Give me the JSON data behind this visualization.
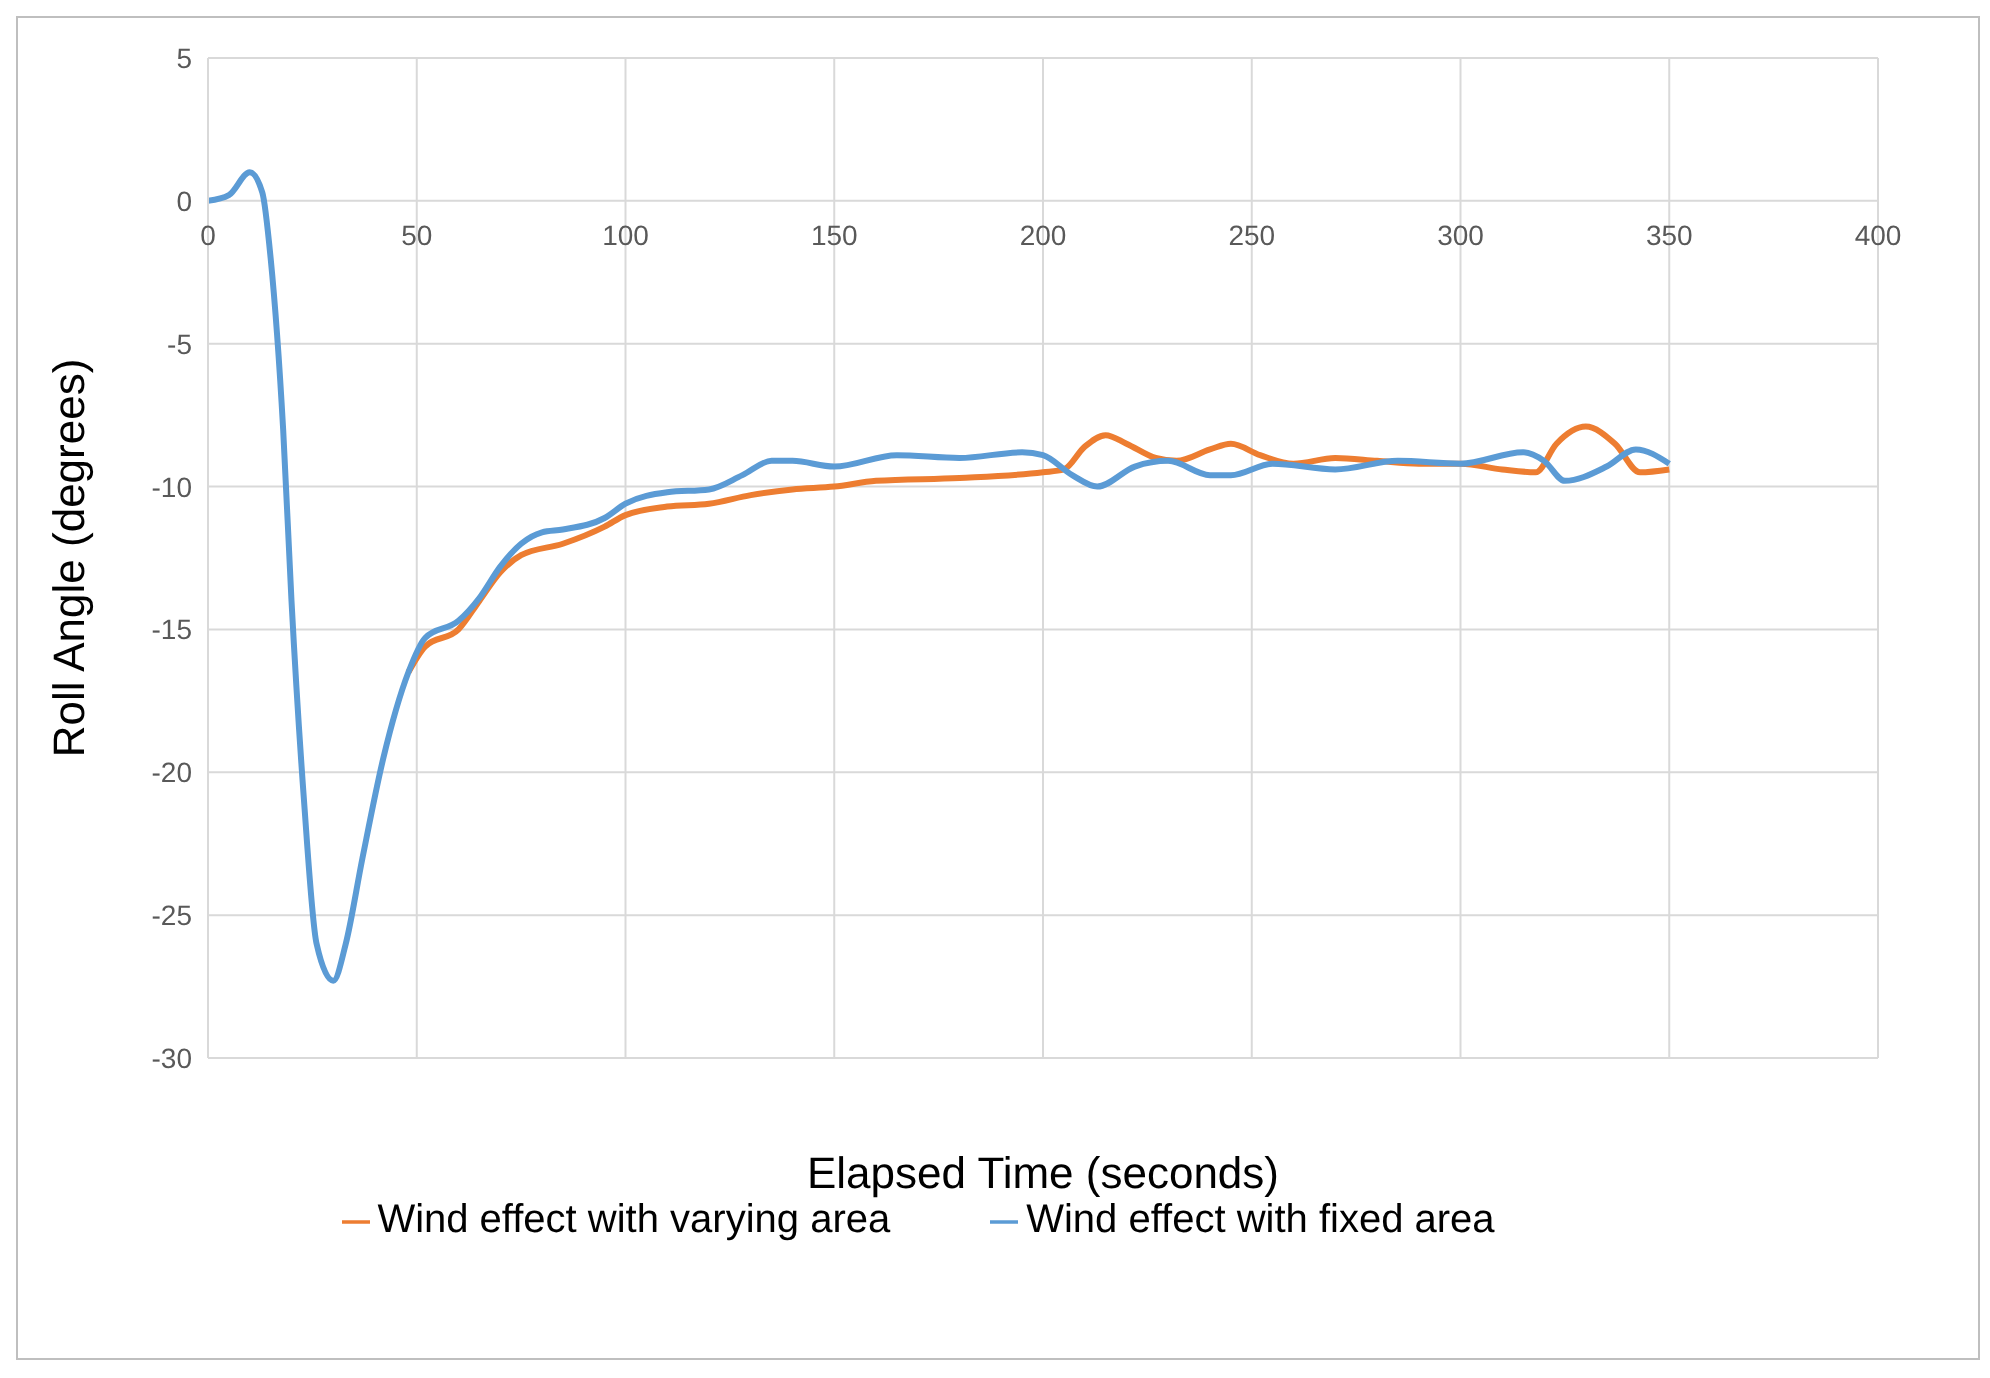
{
  "chart_data": {
    "type": "line",
    "xlabel": "Elapsed Time (seconds)",
    "ylabel": "Roll Angle (degrees)",
    "xlim": [
      0,
      400
    ],
    "xticks": [
      0,
      50,
      100,
      150,
      200,
      250,
      300,
      350,
      400
    ],
    "ylim": [
      -30,
      5
    ],
    "yticks": [
      -30,
      -25,
      -20,
      -15,
      -10,
      -5,
      0,
      5
    ],
    "grid": true,
    "legend": "bottom",
    "marker": "none",
    "line_style": "solid",
    "series": [
      {
        "name": "Wind effect with varying area",
        "color": "#ed7d31",
        "x": [
          48,
          52,
          60,
          65,
          70,
          75,
          85,
          95,
          100,
          110,
          120,
          130,
          140,
          150,
          160,
          180,
          200,
          205,
          210,
          215,
          220,
          227,
          232,
          240,
          245,
          252,
          260,
          270,
          280,
          290,
          300,
          310,
          318,
          323,
          330,
          337,
          343,
          350
        ],
        "values": [
          -16.5,
          -15.6,
          -15.0,
          -14,
          -13,
          -12.4,
          -12.0,
          -11.4,
          -11.0,
          -10.7,
          -10.6,
          -10.3,
          -10.1,
          -10.0,
          -9.8,
          -9.7,
          -9.5,
          -9.4,
          -8.6,
          -8.2,
          -8.5,
          -9.0,
          -9.1,
          -8.7,
          -8.5,
          -8.9,
          -9.2,
          -9.0,
          -9.1,
          -9.2,
          -9.2,
          -9.4,
          -9.5,
          -8.5,
          -7.9,
          -8.5,
          -9.5,
          -9.4
        ]
      },
      {
        "name": "Wind effect with fixed area",
        "color": "#5b9bd5",
        "x": [
          0,
          5,
          10,
          13,
          15,
          18,
          20,
          23,
          26,
          30,
          33,
          37,
          42,
          48,
          52,
          60,
          65,
          70,
          75,
          80,
          85,
          95,
          100,
          110,
          120,
          128,
          135,
          140,
          150,
          165,
          180,
          195,
          200,
          207,
          213,
          222,
          230,
          240,
          245,
          255,
          270,
          285,
          300,
          315,
          320,
          325,
          335,
          342,
          350
        ],
        "values": [
          0,
          0.2,
          1.0,
          0.3,
          -2,
          -8,
          -14,
          -21,
          -26,
          -27.3,
          -26,
          -23,
          -19.5,
          -16.5,
          -15.3,
          -14.7,
          -13.9,
          -12.8,
          -12.0,
          -11.6,
          -11.5,
          -11.1,
          -10.6,
          -10.2,
          -10.1,
          -9.6,
          -9.1,
          -9.1,
          -9.3,
          -8.9,
          -9.0,
          -8.8,
          -8.9,
          -9.6,
          -10.0,
          -9.3,
          -9.1,
          -9.6,
          -9.6,
          -9.2,
          -9.4,
          -9.1,
          -9.2,
          -8.8,
          -9.1,
          -9.8,
          -9.3,
          -8.7,
          -9.2
        ]
      }
    ]
  }
}
